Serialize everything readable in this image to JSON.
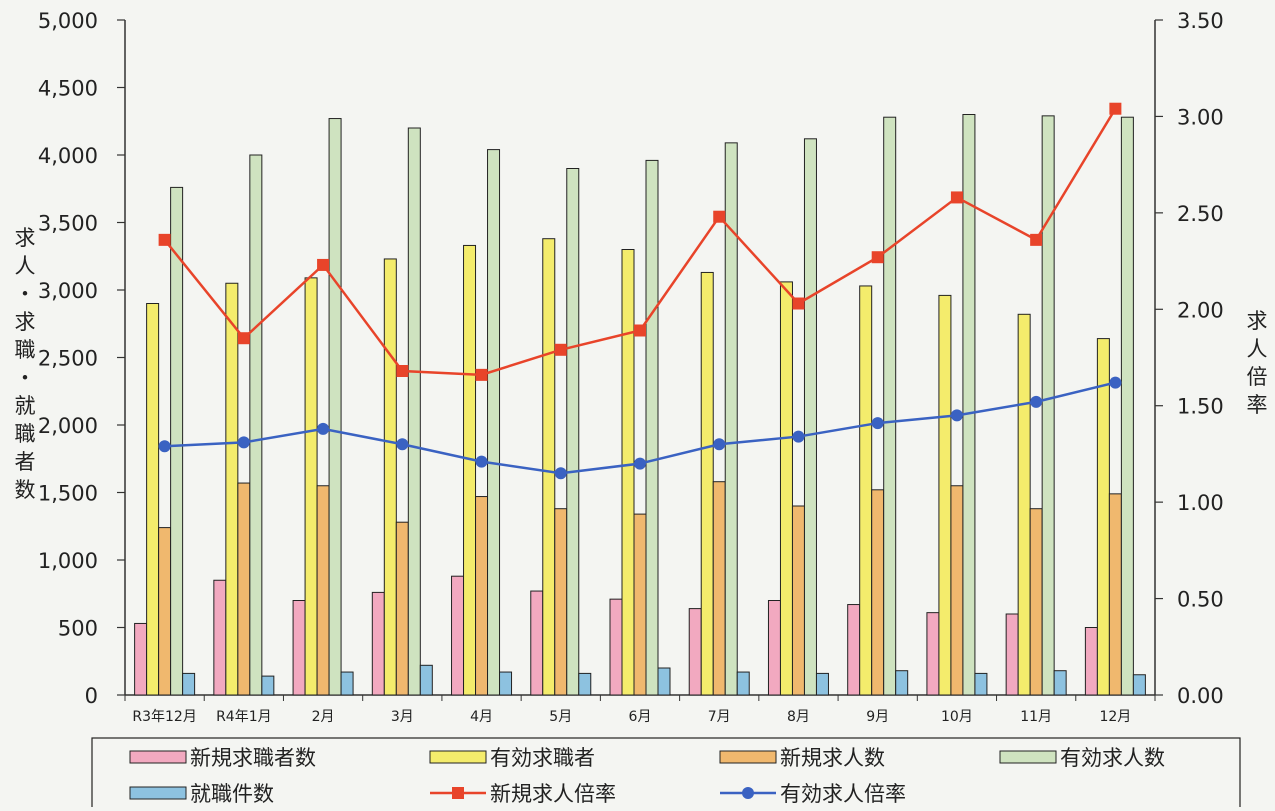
{
  "chart_data": {
    "type": "bar",
    "categories": [
      "R3年12月",
      "R4年1月",
      "2月",
      "3月",
      "4月",
      "5月",
      "6月",
      "7月",
      "8月",
      "9月",
      "10月",
      "11月",
      "12月"
    ],
    "series": [
      {
        "name": "新規求職者数",
        "kind": "bar",
        "axis": "left",
        "color": "#f2a9c0",
        "values": [
          530,
          850,
          700,
          760,
          880,
          770,
          710,
          640,
          700,
          670,
          610,
          600,
          500
        ]
      },
      {
        "name": "有効求職者",
        "kind": "bar",
        "axis": "left",
        "color": "#f4ec6c",
        "values": [
          2900,
          3050,
          3090,
          3230,
          3330,
          3380,
          3300,
          3130,
          3060,
          3030,
          2960,
          2820,
          2640
        ]
      },
      {
        "name": "新規求人数",
        "kind": "bar",
        "axis": "left",
        "color": "#f0b86e",
        "values": [
          1240,
          1570,
          1550,
          1280,
          1470,
          1380,
          1340,
          1580,
          1400,
          1520,
          1550,
          1380,
          1490
        ]
      },
      {
        "name": "有効求人数",
        "kind": "bar",
        "axis": "left",
        "color": "#cfe3c0",
        "values": [
          3760,
          4000,
          4270,
          4200,
          4040,
          3900,
          3960,
          4090,
          4120,
          4280,
          4300,
          4290,
          4280
        ]
      },
      {
        "name": "就職件数",
        "kind": "bar",
        "axis": "left",
        "color": "#8dc2e0",
        "values": [
          160,
          140,
          170,
          220,
          170,
          160,
          200,
          170,
          160,
          180,
          160,
          180,
          150
        ]
      },
      {
        "name": "新規求人倍率",
        "kind": "line",
        "axis": "right",
        "color": "#e8442a",
        "marker": "square",
        "values": [
          2.36,
          1.85,
          2.23,
          1.68,
          1.66,
          1.79,
          1.89,
          2.48,
          2.03,
          2.27,
          2.58,
          2.36,
          3.04
        ]
      },
      {
        "name": "有効求人倍率",
        "kind": "line",
        "axis": "right",
        "color": "#3a62c2",
        "marker": "circle",
        "values": [
          1.29,
          1.31,
          1.38,
          1.3,
          1.21,
          1.15,
          1.2,
          1.3,
          1.34,
          1.41,
          1.45,
          1.52,
          1.62
        ]
      }
    ],
    "y_left": {
      "label": "求人・求職・就職者数",
      "ylim": [
        0,
        5000
      ],
      "ticks": [
        0,
        500,
        1000,
        1500,
        2000,
        2500,
        3000,
        3500,
        4000,
        4500,
        5000
      ],
      "tick_labels": [
        "0",
        "500",
        "1,000",
        "1,500",
        "2,000",
        "2,500",
        "3,000",
        "3,500",
        "4,000",
        "4,500",
        "5,000"
      ]
    },
    "y_right": {
      "label": "求人倍率",
      "ylim": [
        0,
        3.5
      ],
      "ticks": [
        0,
        0.5,
        1.0,
        1.5,
        2.0,
        2.5,
        3.0,
        3.5
      ],
      "tick_labels": [
        "0.00",
        "0.50",
        "1.00",
        "1.50",
        "2.00",
        "2.50",
        "3.00",
        "3.50"
      ]
    },
    "grid": false,
    "legend_position": "bottom"
  }
}
